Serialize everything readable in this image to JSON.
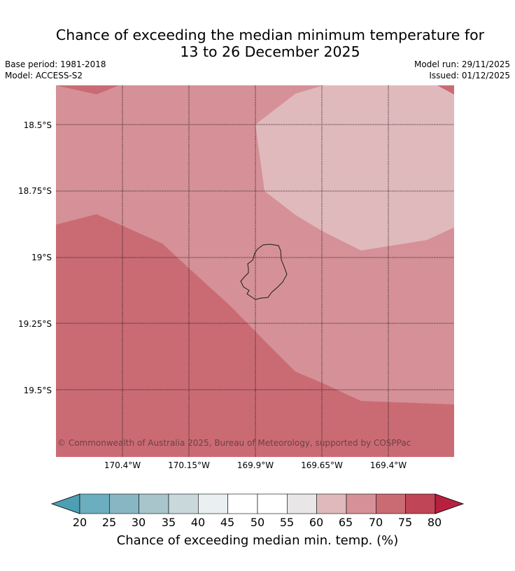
{
  "title": {
    "line1": "Chance of exceeding the median minimum temperature for",
    "line2": "13 to 26 December 2025"
  },
  "meta": {
    "base_period": "Base period: 1981-2018",
    "model": "Model: ACCESS-S2",
    "model_run": "Model run: 29/11/2025",
    "issued": "Issued: 01/12/2025"
  },
  "map": {
    "latitude_labels": [
      "18.5°S",
      "18.75°S",
      "19°S",
      "19.25°S",
      "19.5°S"
    ],
    "longitude_labels": [
      "170.4°W",
      "170.15°W",
      "169.9°W",
      "169.65°W",
      "169.4°W"
    ],
    "copyright": "© Commonwealth of Australia 2025, Bureau of Meteorology, supported by COSPPac",
    "island_outline": "Niue",
    "region_colors": {
      "60_65": "#e0b9bc",
      "65_70": "#d59197",
      "70_75": "#ca6b74",
      "75_80": "#c04657"
    }
  },
  "colorbar": {
    "ticks": [
      "20",
      "25",
      "30",
      "35",
      "40",
      "45",
      "50",
      "55",
      "60",
      "65",
      "70",
      "75",
      "80"
    ],
    "colors": [
      "#4d9fb3",
      "#6aaebf",
      "#88b6c2",
      "#a7c5ca",
      "#c8d8db",
      "#eaf0f1",
      "#ffffff",
      "#ffffff",
      "#e8e6e6",
      "#e0b9bc",
      "#d59197",
      "#ca6b74",
      "#c04657",
      "#b8203f"
    ],
    "label": "Chance of exceeding median min. temp. (%)"
  }
}
